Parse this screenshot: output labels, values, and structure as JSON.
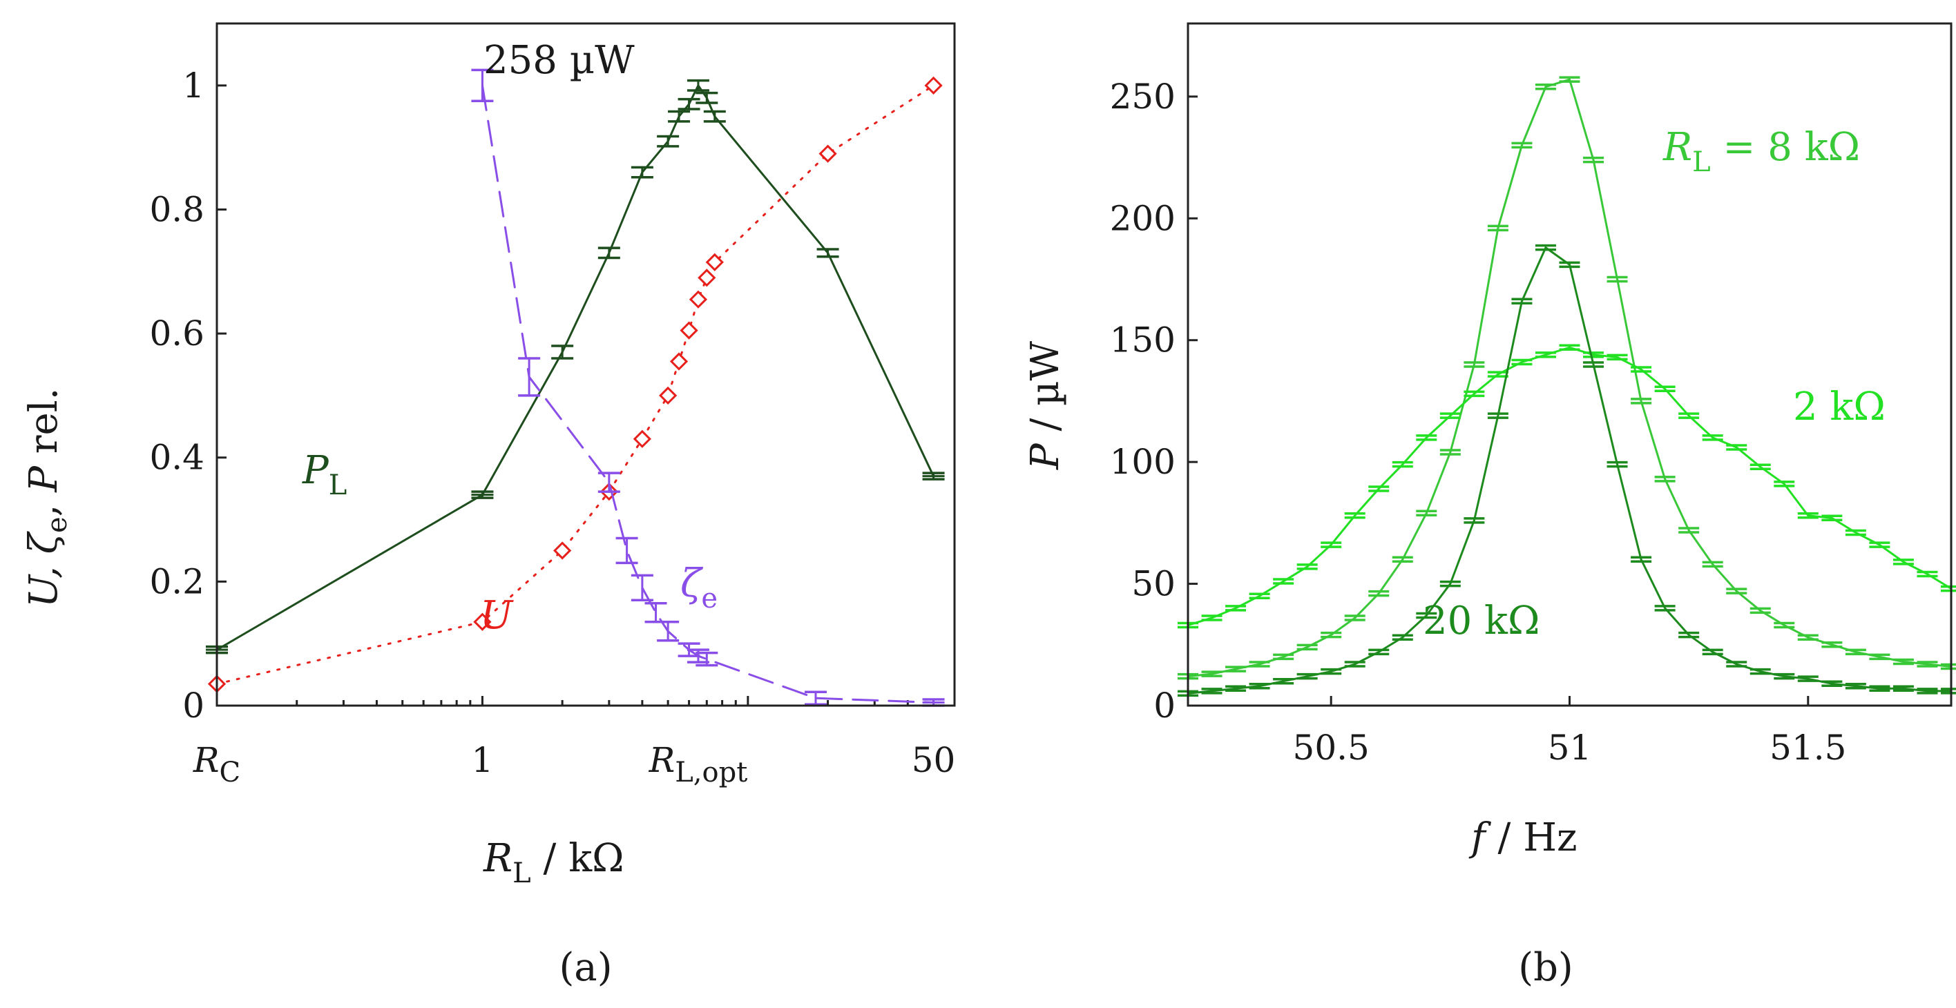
{
  "chart_data": [
    {
      "type": "line",
      "panel_label": "(a)",
      "xlabel": {
        "sym": "R",
        "sub": "L",
        "rest": " / kΩ"
      },
      "ylabel": {
        "prefix": "U, ζ",
        "sub": "e",
        "mid": ", ",
        "sym": "P",
        "rest": " rel."
      },
      "xscale": "log",
      "xlim": [
        0.1,
        60
      ],
      "ylim": [
        0,
        1.1
      ],
      "yticks": [
        0,
        0.2,
        0.4,
        0.6,
        0.8,
        1
      ],
      "ytick_labels": [
        "0",
        "0.2",
        "0.4",
        "0.6",
        "0.8",
        "1"
      ],
      "xtick_labels": [
        {
          "value": 0.1,
          "sym": "R",
          "sub": "C"
        },
        {
          "value": 1,
          "text": "1"
        },
        {
          "value": 6.5,
          "sym": "R",
          "sub": "L,opt"
        },
        {
          "value": 50,
          "text": "50"
        }
      ],
      "annotations": {
        "peak_power": "258 µW"
      },
      "series": [
        {
          "name": "P_L",
          "label_sym": "P",
          "label_sub": "L",
          "color": "#1e4d1e",
          "style": "solid",
          "marker": "errorbar",
          "x": [
            0.1,
            1,
            2,
            3,
            4,
            5,
            5.5,
            6,
            6.5,
            7,
            7.5,
            20,
            50
          ],
          "y": [
            0.09,
            0.34,
            0.57,
            0.73,
            0.86,
            0.91,
            0.95,
            0.97,
            1.0,
            0.98,
            0.95,
            0.73,
            0.37
          ],
          "err": [
            0.005,
            0.005,
            0.01,
            0.008,
            0.008,
            0.008,
            0.008,
            0.008,
            0.008,
            0.008,
            0.008,
            0.006,
            0.005
          ]
        },
        {
          "name": "U",
          "label": "U",
          "color": "#e8201c",
          "style": "dotted",
          "marker": "diamond",
          "x": [
            0.1,
            1,
            2,
            3,
            4,
            5,
            5.5,
            6,
            6.5,
            7,
            7.5,
            20,
            50
          ],
          "y": [
            0.035,
            0.135,
            0.25,
            0.345,
            0.43,
            0.5,
            0.555,
            0.605,
            0.655,
            0.69,
            0.715,
            0.89,
            1.0
          ]
        },
        {
          "name": "zeta_e",
          "label_sym": "ζ",
          "label_sub": "e",
          "color": "#8a4ee8",
          "style": "dashed",
          "marker": "errorbar",
          "x": [
            1,
            1.5,
            3,
            3.5,
            4,
            4.5,
            5,
            6,
            6.5,
            7,
            18,
            50
          ],
          "y": [
            1.0,
            0.53,
            0.36,
            0.25,
            0.19,
            0.15,
            0.12,
            0.09,
            0.08,
            0.075,
            0.012,
            0.005
          ],
          "err": [
            0.025,
            0.03,
            0.015,
            0.02,
            0.02,
            0.015,
            0.015,
            0.01,
            0.01,
            0.01,
            0.01,
            0.005
          ]
        }
      ]
    },
    {
      "type": "line",
      "panel_label": "(b)",
      "xlabel": {
        "sym": "f",
        "rest": " / Hz"
      },
      "ylabel": {
        "sym": "P",
        "rest": " / µW"
      },
      "xlim": [
        50.2,
        51.8
      ],
      "ylim": [
        0,
        280
      ],
      "xticks": [
        50.5,
        51,
        51.5
      ],
      "xtick_labels": [
        "50.5",
        "51",
        "51.5"
      ],
      "yticks": [
        0,
        50,
        100,
        150,
        200,
        250
      ],
      "ytick_labels": [
        "0",
        "50",
        "100",
        "150",
        "200",
        "250"
      ],
      "x": [
        50.2,
        50.25,
        50.3,
        50.35,
        50.4,
        50.45,
        50.5,
        50.55,
        50.6,
        50.65,
        50.7,
        50.75,
        50.8,
        50.85,
        50.9,
        50.95,
        51.0,
        51.05,
        51.1,
        51.15,
        51.2,
        51.25,
        51.3,
        51.35,
        51.4,
        51.45,
        51.5,
        51.55,
        51.6,
        51.65,
        51.7,
        51.75,
        51.8
      ],
      "series": [
        {
          "name": "8 kΩ",
          "label_prefix_sym": "R",
          "label_prefix_sub": "L",
          "label": " = 8 kΩ",
          "color": "#38c838",
          "y": [
            12,
            13,
            15,
            17,
            20,
            24,
            29,
            36,
            46,
            60,
            79,
            104,
            140,
            196,
            230,
            254,
            257,
            224,
            175,
            125,
            93,
            72,
            58,
            47,
            39,
            33,
            28,
            25,
            22,
            20,
            18,
            17,
            16
          ]
        },
        {
          "name": "2 kΩ",
          "label": "2 kΩ",
          "color": "#22e022",
          "y": [
            33,
            36,
            40,
            45,
            51,
            57,
            66,
            78,
            89,
            99,
            110,
            119,
            128,
            136,
            141,
            144,
            147,
            144,
            143,
            138,
            130,
            119,
            110,
            106,
            98,
            91,
            78,
            77,
            71,
            66,
            59,
            54,
            48
          ]
        },
        {
          "name": "20 kΩ",
          "label": "20 kΩ",
          "color": "#1d8a1d",
          "y": [
            5,
            6,
            7,
            8,
            10,
            12,
            14,
            17,
            22,
            28,
            37,
            50,
            76,
            119,
            166,
            188,
            181,
            140,
            99,
            60,
            40,
            29,
            22,
            17,
            14,
            12,
            11,
            9,
            8,
            7,
            7,
            6,
            6
          ]
        }
      ]
    }
  ]
}
